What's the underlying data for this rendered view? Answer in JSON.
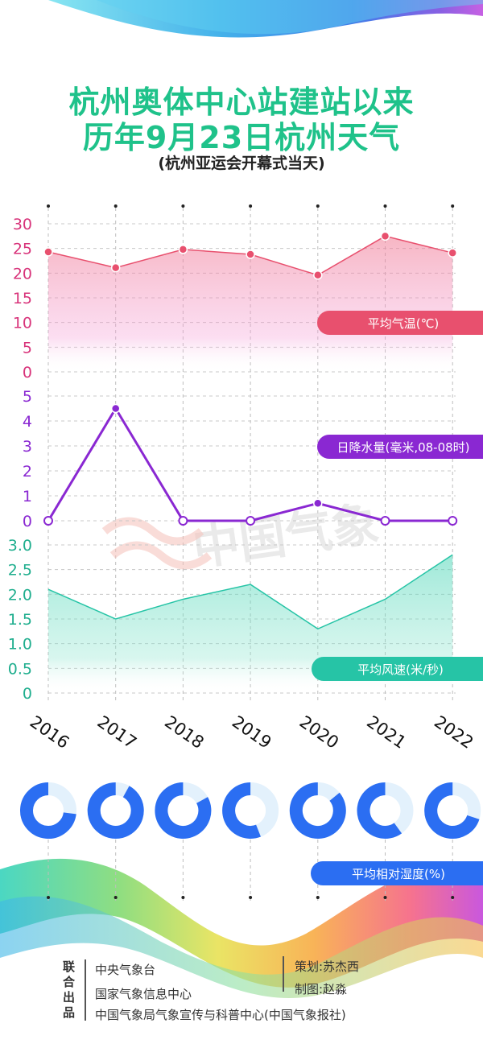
{
  "header": {
    "title_line1": "杭州奥体中心站建站以来",
    "title_line2": "历年9月23日杭州天气",
    "subtitle": "(杭州亚运会开幕式当天)"
  },
  "watermark": "中国气象",
  "colors": {
    "title": "#1fc28a",
    "temperature": "#e8506e",
    "precipitation": "#8a28d2",
    "wind": "#26c4a6",
    "humidity": "#2b6ef2",
    "humidity_bg": "#e3f1fc"
  },
  "chart_data": [
    {
      "type": "area",
      "series": [
        {
          "name": "平均气温(℃)",
          "values": [
            24.3,
            21.1,
            24.8,
            23.8,
            19.6,
            27.5,
            24.1
          ]
        }
      ],
      "categories": [
        "2016",
        "2017",
        "2018",
        "2019",
        "2020",
        "2021",
        "2022"
      ],
      "yticks": [
        "30",
        "25",
        "20",
        "15",
        "10",
        "5",
        "0"
      ],
      "ylim": [
        0,
        30
      ],
      "grid": true
    },
    {
      "type": "line",
      "series": [
        {
          "name": "日降水量(毫米,08-08时)",
          "values": [
            0,
            4.5,
            0,
            0,
            0.7,
            0,
            0
          ]
        }
      ],
      "categories": [
        "2016",
        "2017",
        "2018",
        "2019",
        "2020",
        "2021",
        "2022"
      ],
      "yticks": [
        "5",
        "4",
        "3",
        "2",
        "1",
        "0"
      ],
      "ylim": [
        0,
        5
      ],
      "grid": true
    },
    {
      "type": "area",
      "series": [
        {
          "name": "平均风速(米/秒)",
          "values": [
            2.1,
            1.5,
            1.9,
            2.2,
            1.3,
            1.9,
            2.8
          ]
        }
      ],
      "categories": [
        "2016",
        "2017",
        "2018",
        "2019",
        "2020",
        "2021",
        "2022"
      ],
      "yticks": [
        "3.0",
        "2.5",
        "2.0",
        "1.5",
        "1.0",
        "0.5",
        "0"
      ],
      "ylim": [
        0,
        3
      ],
      "grid": true
    },
    {
      "type": "pie",
      "series": [
        {
          "name": "平均相对湿度(%)",
          "values": [
            73,
            92,
            83,
            56,
            86,
            60,
            70
          ]
        }
      ],
      "categories": [
        "2016",
        "2017",
        "2018",
        "2019",
        "2020",
        "2021",
        "2022"
      ]
    }
  ],
  "credits": {
    "vertical_label": "联合出品",
    "org1": "中央气象台",
    "org2": "国家气象信息中心",
    "org3": "中国气象局气象宣传与科普中心(中国气象报社)",
    "planner": "策划:苏杰西",
    "designer": "制图:赵淼"
  }
}
